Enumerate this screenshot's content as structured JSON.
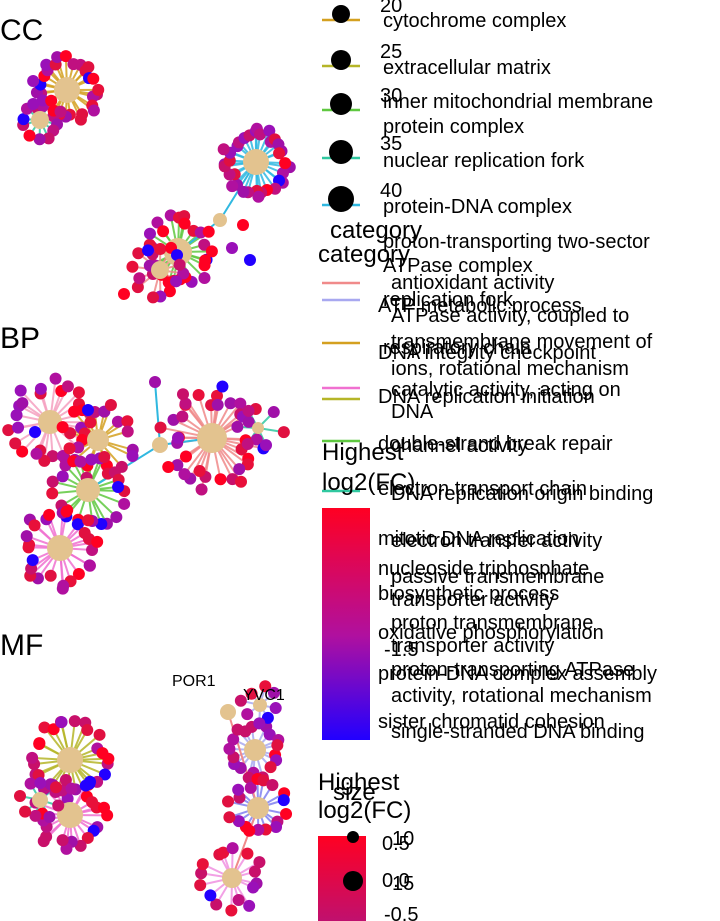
{
  "chart_data": [
    {
      "type": "network",
      "panel": "CC",
      "hub_categories": [
        "cytochrome complex",
        "extracellular matrix",
        "inner mitochondrial membrane protein complex",
        "nuclear replication fork",
        "protein-DNA complex",
        "proton-transporting two-sector ATPase complex",
        "replication fork",
        "respiratory chain"
      ]
    },
    {
      "type": "network",
      "panel": "BP",
      "hub_categories": [
        "ATP metabolic process",
        "DNA integrity checkpoint",
        "DNA replication initiation",
        "double-strand break repair",
        "electron transport chain",
        "mitotic DNA replication",
        "nucleoside triphosphate biosynthetic process",
        "oxidative phosphorylation",
        "protein-DNA complex assembly",
        "sister chromatid cohesion"
      ]
    },
    {
      "type": "network",
      "panel": "MF",
      "hub_categories": [
        "antioxidant activity",
        "ATPase activity, coupled to transmembrane movement of ions, rotational mechanism",
        "catalytic activity, acting on DNA",
        "channel activity",
        "DNA replication origin binding",
        "electron transfer activity",
        "passive transmembrane transporter activity",
        "proton transmembrane transporter activity",
        "proton-transporting ATPase activity, rotational mechanism",
        "single-stranded DNA binding"
      ],
      "gene_labels": [
        "POR1",
        "YVC1"
      ]
    }
  ],
  "panels": {
    "cc": "CC",
    "bp": "BP",
    "mf": "MF"
  },
  "legend": {
    "size_top": {
      "values": [
        "20",
        "25",
        "30",
        "35",
        "40"
      ]
    },
    "cc_categories": [
      "cytochrome complex",
      "extracellular matrix",
      "inner mitochondrial membrane",
      "protein complex",
      "nuclear replication fork",
      "protein-DNA complex",
      "proton-transporting two-sector",
      "ATPase complex",
      "replication fork",
      "respiratory chain"
    ],
    "category_title": "category",
    "bp_categories": [
      "ATP metabolic process",
      "DNA integrity checkpoint",
      "DNA replication initiation",
      "double-strand break repair",
      "electron transport chain",
      "mitotic DNA replication",
      "nucleoside triphosphate",
      "biosynthetic process",
      "oxidative phosphorylation",
      "protein-DNA complex assembly",
      "sister chromatid cohesion"
    ],
    "mf_categories": [
      "antioxidant activity",
      "ATPase activity, coupled to",
      "transmembrane movement of",
      "ions, rotational mechanism",
      "catalytic activity, acting on",
      "DNA",
      "channel activity",
      "DNA replication origin binding",
      "electron transfer activity",
      "passive transmembrane",
      "transporter activity",
      "proton transmembrane",
      "transporter activity",
      "proton-transporting ATPase",
      "activity, rotational mechanism",
      "single-stranded DNA binding"
    ],
    "fc_title_1": "Highest",
    "fc_title_2": "log2(FC)",
    "fc_tick": "-1.5",
    "size_bottom_title": "size",
    "size_bottom_values": [
      "10",
      "15"
    ],
    "fc_bottom_ticks": [
      "0.5",
      "0.0",
      "-0.5"
    ]
  },
  "colors": {
    "node_gene_high": "#ff0022",
    "node_gene_mid": "#b0109f",
    "node_gene_low": "#2200ff",
    "hub": "#e3c38f",
    "cytochrome complex": "#d4a020",
    "extracellular matrix": "#b5b528",
    "inner mitochondrial membrane protein complex": "#5fc840",
    "nuclear replication fork": "#30c8a0",
    "protein-DNA complex": "#30b8e0",
    "antioxidant activity": "#f08a8a",
    "ATP metabolic process": "#a8a8f0",
    "DNA integrity checkpoint": "#d4a020",
    "catalytic activity, acting on DNA": "#f070d0",
    "DNA replication initiation": "#b5b528",
    "channel activity": "#5fc840",
    "DNA replication origin binding": "#30c8a0",
    "electron transfer activity": "#3a9ae0",
    "passive transmembrane": "#8080f0",
    "proton-transporting ATPase": "#f090e0"
  }
}
